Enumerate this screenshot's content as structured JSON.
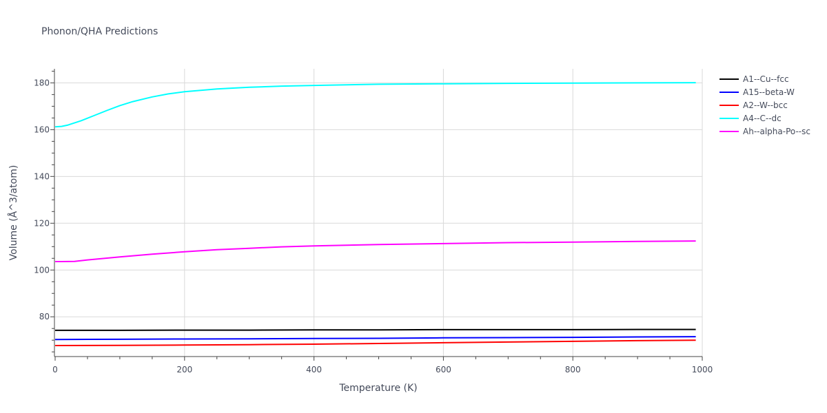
{
  "chart_data": {
    "type": "line",
    "title": "Phonon/QHA Predictions",
    "xlabel": "Temperature (K)",
    "ylabel": "Volume (Å^3/atom)",
    "xlim": [
      0,
      1000
    ],
    "ylim": [
      63,
      186
    ],
    "x_ticks": [
      0,
      200,
      400,
      600,
      800,
      1000
    ],
    "y_ticks": [
      80,
      100,
      120,
      140,
      160,
      180
    ],
    "grid": true,
    "legend_position": "right",
    "series": [
      {
        "name": "A1--Cu--fcc",
        "color": "#000000",
        "x": [
          0,
          100,
          200,
          300,
          400,
          500,
          600,
          700,
          800,
          900,
          990
        ],
        "y": [
          74.2,
          74.2,
          74.3,
          74.3,
          74.4,
          74.4,
          74.5,
          74.5,
          74.5,
          74.6,
          74.6
        ]
      },
      {
        "name": "A15--beta-W",
        "color": "#0000ff",
        "x": [
          0,
          100,
          200,
          300,
          400,
          500,
          600,
          700,
          800,
          900,
          990
        ],
        "y": [
          70.3,
          70.4,
          70.5,
          70.6,
          70.7,
          70.8,
          71.0,
          71.1,
          71.2,
          71.4,
          71.5
        ]
      },
      {
        "name": "A2--W--bcc",
        "color": "#ff0000",
        "x": [
          0,
          100,
          200,
          300,
          400,
          500,
          600,
          700,
          800,
          900,
          990
        ],
        "y": [
          67.7,
          67.8,
          67.9,
          68.1,
          68.3,
          68.6,
          68.9,
          69.2,
          69.5,
          69.8,
          70.0
        ]
      },
      {
        "name": "A4--C--dc",
        "color": "#00ffff",
        "x": [
          0,
          10,
          20,
          40,
          60,
          80,
          100,
          120,
          150,
          175,
          200,
          250,
          300,
          350,
          400,
          500,
          600,
          700,
          800,
          900,
          990
        ],
        "y": [
          161.2,
          161.4,
          162.0,
          163.8,
          166.0,
          168.2,
          170.3,
          172.0,
          174.0,
          175.3,
          176.2,
          177.4,
          178.1,
          178.6,
          178.9,
          179.4,
          179.6,
          179.8,
          179.9,
          180.0,
          180.1
        ]
      },
      {
        "name": "Ah--alpha-Po--sc",
        "color": "#ff00ff",
        "x": [
          0,
          10,
          30,
          50,
          100,
          150,
          200,
          250,
          300,
          350,
          400,
          500,
          600,
          700,
          800,
          900,
          990
        ],
        "y": [
          103.6,
          103.6,
          103.7,
          104.3,
          105.6,
          106.8,
          107.8,
          108.7,
          109.3,
          109.9,
          110.3,
          110.9,
          111.3,
          111.7,
          111.9,
          112.2,
          112.4
        ]
      }
    ]
  }
}
